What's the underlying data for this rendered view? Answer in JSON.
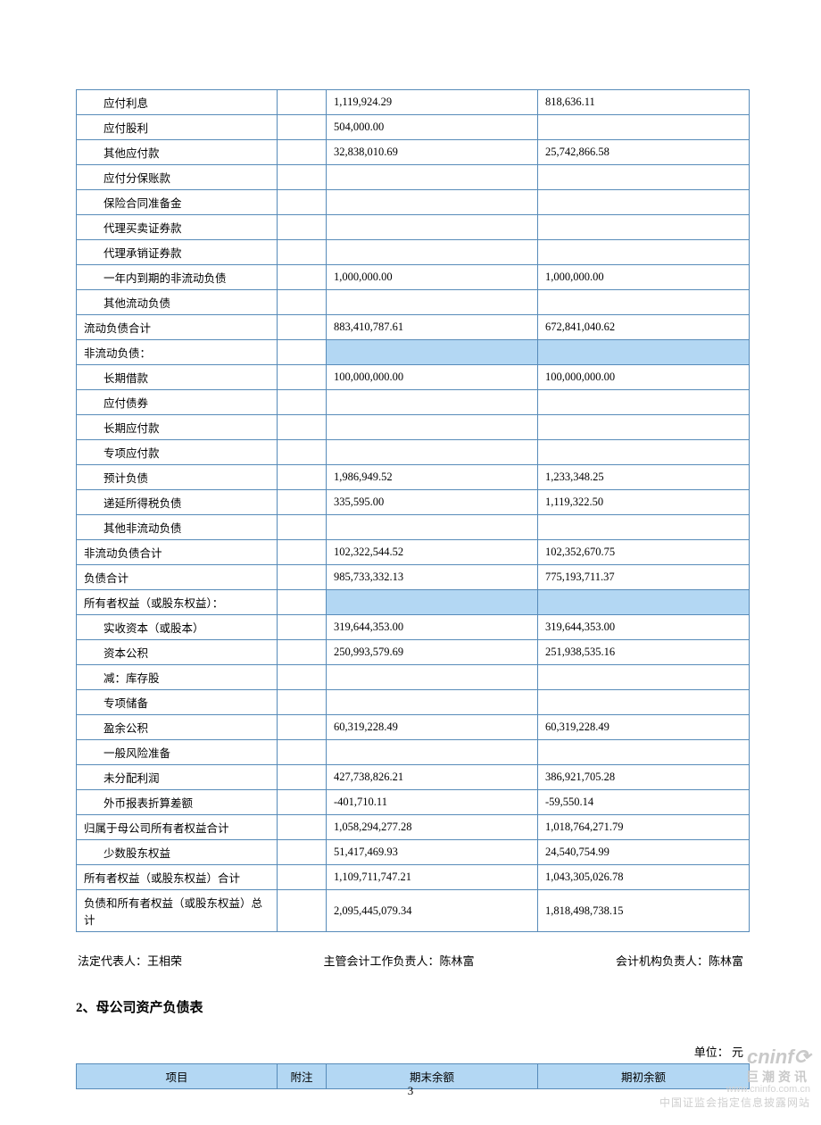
{
  "table1": {
    "rows": [
      {
        "label": "应付利息",
        "indent": 1,
        "c3": "1,119,924.29",
        "c4": "818,636.11"
      },
      {
        "label": "应付股利",
        "indent": 1,
        "c3": "504,000.00",
        "c4": ""
      },
      {
        "label": "其他应付款",
        "indent": 1,
        "c3": "32,838,010.69",
        "c4": "25,742,866.58"
      },
      {
        "label": "应付分保账款",
        "indent": 1,
        "c3": "",
        "c4": ""
      },
      {
        "label": "保险合同准备金",
        "indent": 1,
        "c3": "",
        "c4": ""
      },
      {
        "label": "代理买卖证券款",
        "indent": 1,
        "c3": "",
        "c4": ""
      },
      {
        "label": "代理承销证券款",
        "indent": 1,
        "c3": "",
        "c4": ""
      },
      {
        "label": "一年内到期的非流动负债",
        "indent": 1,
        "c3": "1,000,000.00",
        "c4": "1,000,000.00"
      },
      {
        "label": "其他流动负债",
        "indent": 1,
        "c3": "",
        "c4": ""
      },
      {
        "label": "流动负债合计",
        "indent": 0,
        "c3": "883,410,787.61",
        "c4": "672,841,040.62"
      },
      {
        "label": "非流动负债：",
        "indent": 0,
        "c3": "",
        "c4": "",
        "blue": true
      },
      {
        "label": "长期借款",
        "indent": 1,
        "c3": "100,000,000.00",
        "c4": "100,000,000.00"
      },
      {
        "label": "应付债券",
        "indent": 1,
        "c3": "",
        "c4": ""
      },
      {
        "label": "长期应付款",
        "indent": 1,
        "c3": "",
        "c4": ""
      },
      {
        "label": "专项应付款",
        "indent": 1,
        "c3": "",
        "c4": ""
      },
      {
        "label": "预计负债",
        "indent": 1,
        "c3": "1,986,949.52",
        "c4": "1,233,348.25"
      },
      {
        "label": "递延所得税负债",
        "indent": 1,
        "c3": "335,595.00",
        "c4": "1,119,322.50"
      },
      {
        "label": "其他非流动负债",
        "indent": 1,
        "c3": "",
        "c4": ""
      },
      {
        "label": "非流动负债合计",
        "indent": 0,
        "c3": "102,322,544.52",
        "c4": "102,352,670.75"
      },
      {
        "label": "负债合计",
        "indent": 0,
        "c3": "985,733,332.13",
        "c4": "775,193,711.37"
      },
      {
        "label": "所有者权益（或股东权益）：",
        "indent": 0,
        "c3": "",
        "c4": "",
        "blue": true
      },
      {
        "label": "实收资本（或股本）",
        "indent": 1,
        "c3": "319,644,353.00",
        "c4": "319,644,353.00"
      },
      {
        "label": "资本公积",
        "indent": 1,
        "c3": "250,993,579.69",
        "c4": "251,938,535.16"
      },
      {
        "label": "减：库存股",
        "indent": 1,
        "c3": "",
        "c4": ""
      },
      {
        "label": "专项储备",
        "indent": 1,
        "c3": "",
        "c4": ""
      },
      {
        "label": "盈余公积",
        "indent": 1,
        "c3": "60,319,228.49",
        "c4": "60,319,228.49"
      },
      {
        "label": "一般风险准备",
        "indent": 1,
        "c3": "",
        "c4": ""
      },
      {
        "label": "未分配利润",
        "indent": 1,
        "c3": "427,738,826.21",
        "c4": "386,921,705.28"
      },
      {
        "label": "外币报表折算差额",
        "indent": 1,
        "c3": "-401,710.11",
        "c4": "-59,550.14"
      },
      {
        "label": "归属于母公司所有者权益合计",
        "indent": 0,
        "c3": "1,058,294,277.28",
        "c4": "1,018,764,271.79"
      },
      {
        "label": "少数股东权益",
        "indent": 1,
        "c3": "51,417,469.93",
        "c4": "24,540,754.99"
      },
      {
        "label": "所有者权益（或股东权益）合计",
        "indent": 0,
        "c3": "1,109,711,747.21",
        "c4": "1,043,305,026.78"
      },
      {
        "label": "负债和所有者权益（或股东权益）总计",
        "indent": 0,
        "c3": "2,095,445,079.34",
        "c4": "1,818,498,738.15"
      }
    ]
  },
  "signatures": {
    "legal": "法定代表人：王相荣",
    "accounting": "主管会计工作负责人：陈林富",
    "institution": "会计机构负责人：陈林富"
  },
  "section2_title": "2、母公司资产负债表",
  "unit": "单位：  元",
  "table2_header": {
    "c1": "项目",
    "c2": "附注",
    "c3": "期末余额",
    "c4": "期初余额"
  },
  "page_number": "3",
  "watermark": {
    "brand": "cninf",
    "cn": "巨潮资讯",
    "url": "www.cninfo.com.cn",
    "desc": "中国证监会指定信息披露网站"
  },
  "colors": {
    "border": "#578bb9",
    "header_bg": "#b3d7f3"
  }
}
